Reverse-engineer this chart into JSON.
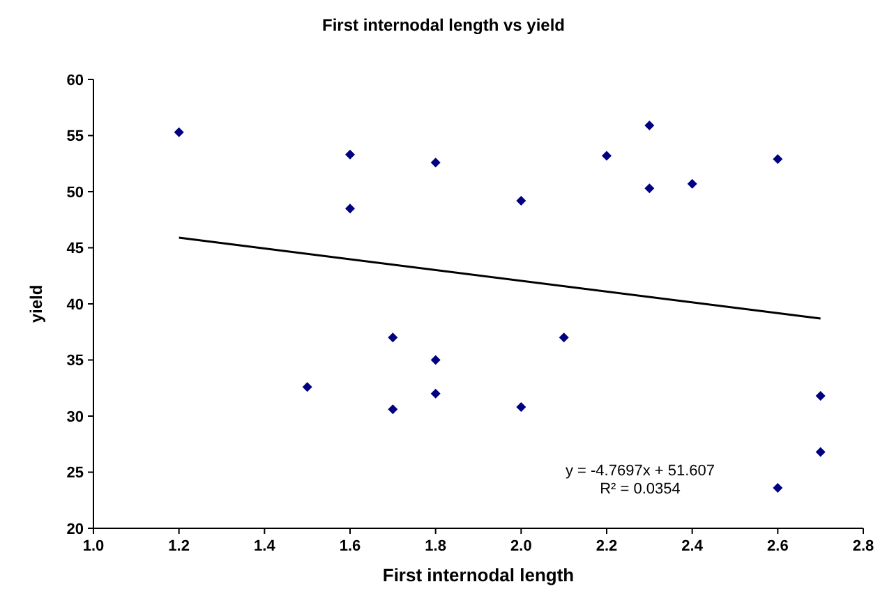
{
  "chart_data": {
    "type": "scatter",
    "title": "First internodal length vs yield",
    "xlabel": "First internodal length",
    "ylabel": "yield",
    "xlim": [
      1.0,
      2.8
    ],
    "xticks": [
      {
        "value": 1.0,
        "label": "1.0"
      },
      {
        "value": 1.2,
        "label": "1.2"
      },
      {
        "value": 1.4,
        "label": "1.4"
      },
      {
        "value": 1.6,
        "label": "1.6"
      },
      {
        "value": 1.8,
        "label": "1.8"
      },
      {
        "value": 2.0,
        "label": "2.0"
      },
      {
        "value": 2.2,
        "label": "2.2"
      },
      {
        "value": 2.4,
        "label": "2.4"
      },
      {
        "value": 2.6,
        "label": "2.6"
      },
      {
        "value": 2.8,
        "label": "2.8"
      }
    ],
    "ylim": [
      20,
      60
    ],
    "yticks": [
      20,
      25,
      30,
      35,
      40,
      45,
      50,
      55,
      60
    ],
    "grid": false,
    "series": [
      {
        "color": "#000080",
        "marker": "diamond",
        "x": [
          1.2,
          1.5,
          1.6,
          1.6,
          1.7,
          1.7,
          1.8,
          1.8,
          1.8,
          2.0,
          2.0,
          2.1,
          2.2,
          2.3,
          2.3,
          2.4,
          2.6,
          2.6,
          2.7,
          2.7
        ],
        "values": [
          55.3,
          32.6,
          53.3,
          48.5,
          37,
          30.6,
          52.6,
          35,
          32,
          49.2,
          30.8,
          37,
          53.2,
          55.9,
          50.3,
          50.7,
          52.9,
          23.6,
          31.8,
          26.8
        ]
      },
      {
        "type": "line",
        "color": "#000000",
        "x": [
          1.2,
          2.7
        ],
        "values": [
          45.9,
          38.7
        ],
        "line_style": "solid"
      }
    ],
    "annotations": [
      "y = -4.7697x + 51.607",
      "R² = 0.0354"
    ]
  }
}
